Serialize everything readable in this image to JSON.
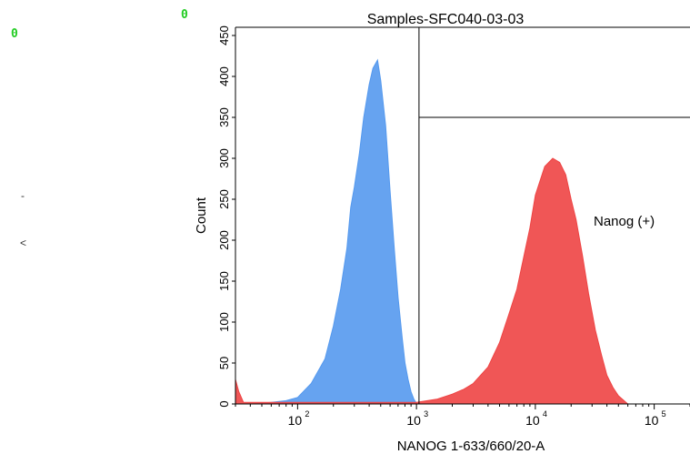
{
  "corner_markers": [
    "0",
    "0"
  ],
  "stray_marks": [
    "-",
    "<"
  ],
  "chart_data": {
    "type": "area",
    "title": "Samples-SFC040-03-03",
    "xlabel": "NANOG 1-633/660/20-A",
    "ylabel": "Count",
    "x_scale": "log",
    "xlim": [
      30,
      200000
    ],
    "ylim": [
      0,
      460
    ],
    "x_ticks": [
      {
        "value": 100,
        "base": "10",
        "exp": "2"
      },
      {
        "value": 1000,
        "base": "10",
        "exp": "3"
      },
      {
        "value": 10000,
        "base": "10",
        "exp": "4"
      },
      {
        "value": 100000,
        "base": "10",
        "exp": "5"
      }
    ],
    "y_ticks": [
      "0",
      "50",
      "100",
      "150",
      "200",
      "250",
      "300",
      "350",
      "400",
      "450"
    ],
    "gate": {
      "label": "Nanog (+)",
      "x_threshold": 1050,
      "y_threshold": 350
    },
    "series": [
      {
        "color": "#5599ee",
        "x": [
          40,
          60,
          80,
          100,
          130,
          170,
          200,
          230,
          260,
          280,
          300,
          330,
          360,
          400,
          430,
          470,
          500,
          550,
          600,
          650,
          700,
          760,
          800,
          850,
          900,
          950,
          1000
        ],
        "y": [
          0,
          2,
          4,
          8,
          25,
          55,
          95,
          140,
          190,
          240,
          265,
          305,
          350,
          390,
          410,
          420,
          395,
          340,
          260,
          190,
          130,
          80,
          50,
          30,
          15,
          6,
          1
        ]
      },
      {
        "color": "#ee4444",
        "x": [
          30,
          32,
          35,
          1000,
          1500,
          2000,
          2500,
          3000,
          4000,
          5000,
          6000,
          7000,
          8000,
          9000,
          10000,
          12000,
          14000,
          16000,
          18000,
          20000,
          22000,
          25000,
          28000,
          32000,
          36000,
          40000,
          45000,
          50000,
          60000
        ],
        "y": [
          30,
          15,
          2,
          2,
          6,
          12,
          18,
          25,
          45,
          75,
          110,
          140,
          180,
          215,
          255,
          290,
          300,
          295,
          280,
          250,
          225,
          180,
          135,
          90,
          60,
          35,
          20,
          10,
          0
        ]
      }
    ]
  }
}
